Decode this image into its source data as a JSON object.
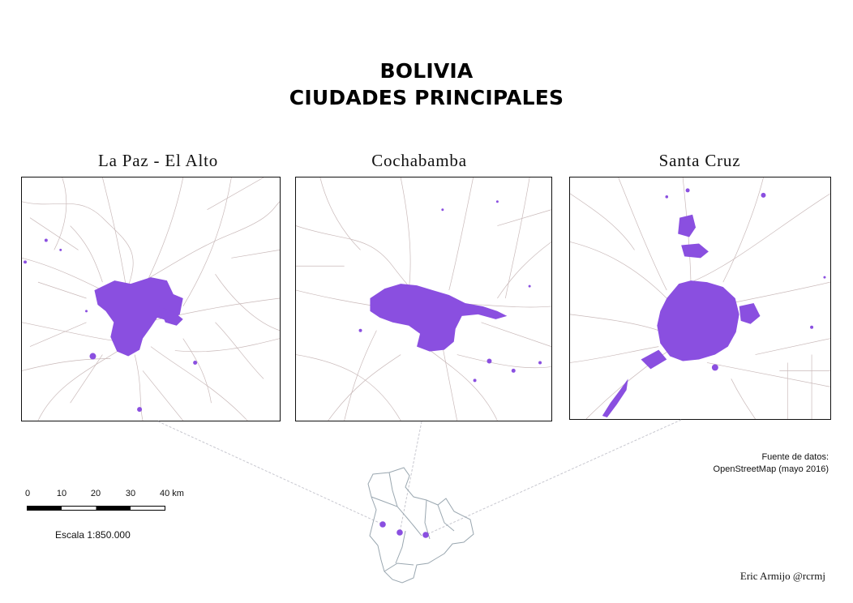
{
  "title": {
    "line1": "BOLIVIA",
    "line2": "CIUDADES PRINCIPALES"
  },
  "panels": [
    {
      "label": "La Paz - El Alto"
    },
    {
      "label": "Cochabamba"
    },
    {
      "label": "Santa Cruz"
    }
  ],
  "scale": {
    "ticks": [
      "0",
      "10",
      "20",
      "30",
      "40 km"
    ],
    "ratio": "Escala 1:850.000"
  },
  "source": {
    "line1": "Fuente de datos:",
    "line2": "OpenStreetMap (mayo 2016)"
  },
  "author": "Eric Armijo @rcrmj",
  "colors": {
    "urban": "#8a4fe0",
    "roads": "#c9b9b9",
    "frame": "#111111",
    "minimap": "#9aa7b0",
    "connector": "#c7c7cf"
  }
}
